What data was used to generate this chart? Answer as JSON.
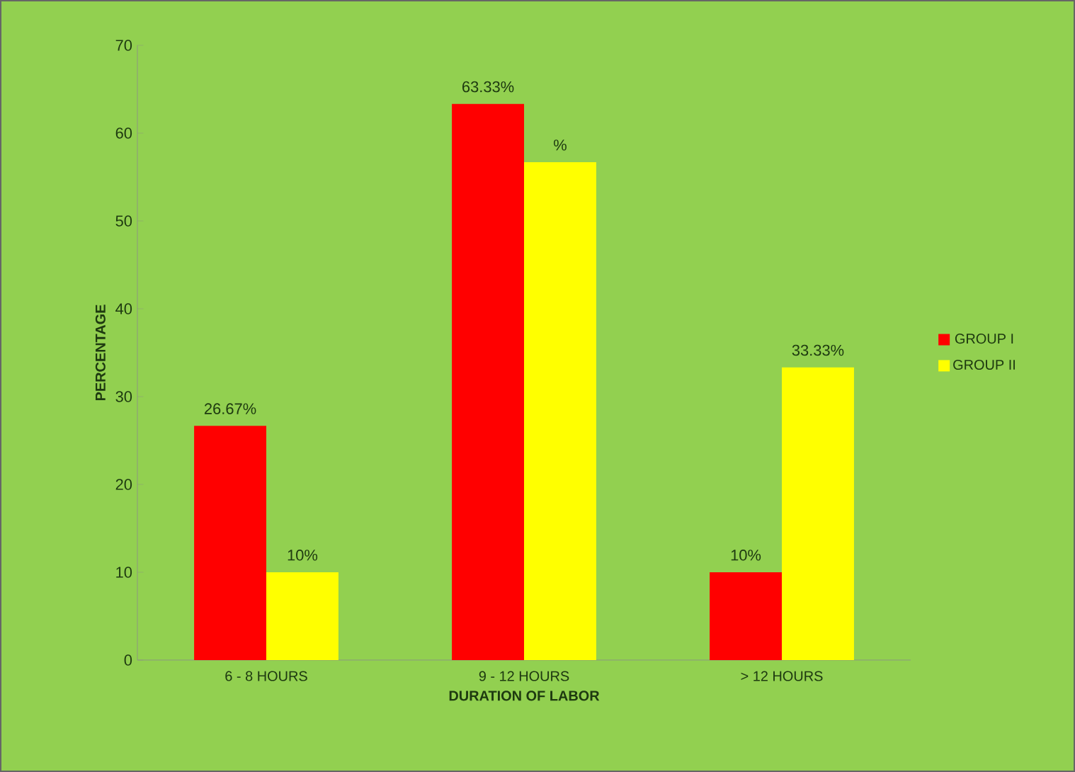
{
  "chart_data": {
    "type": "bar",
    "xlabel": "DURATION OF LABOR",
    "ylabel": "PERCENTAGE",
    "categories": [
      "6 - 8 HOURS",
      "9 - 12 HOURS",
      "> 12 HOURS"
    ],
    "series": [
      {
        "name": "GROUP I",
        "color": "#ff0000",
        "values": [
          26.67,
          63.33,
          10
        ],
        "value_labels": [
          "26.67%",
          "63.33%",
          "10%"
        ]
      },
      {
        "name": "GROUP II",
        "color": "#ffff00",
        "values": [
          10,
          56.7,
          33.33
        ],
        "value_labels": [
          "10%",
          "%",
          "33.33%"
        ]
      }
    ],
    "ylim": [
      0,
      70
    ],
    "yticks": [
      0,
      10,
      20,
      30,
      40,
      50,
      60,
      70
    ],
    "legend": "right"
  }
}
